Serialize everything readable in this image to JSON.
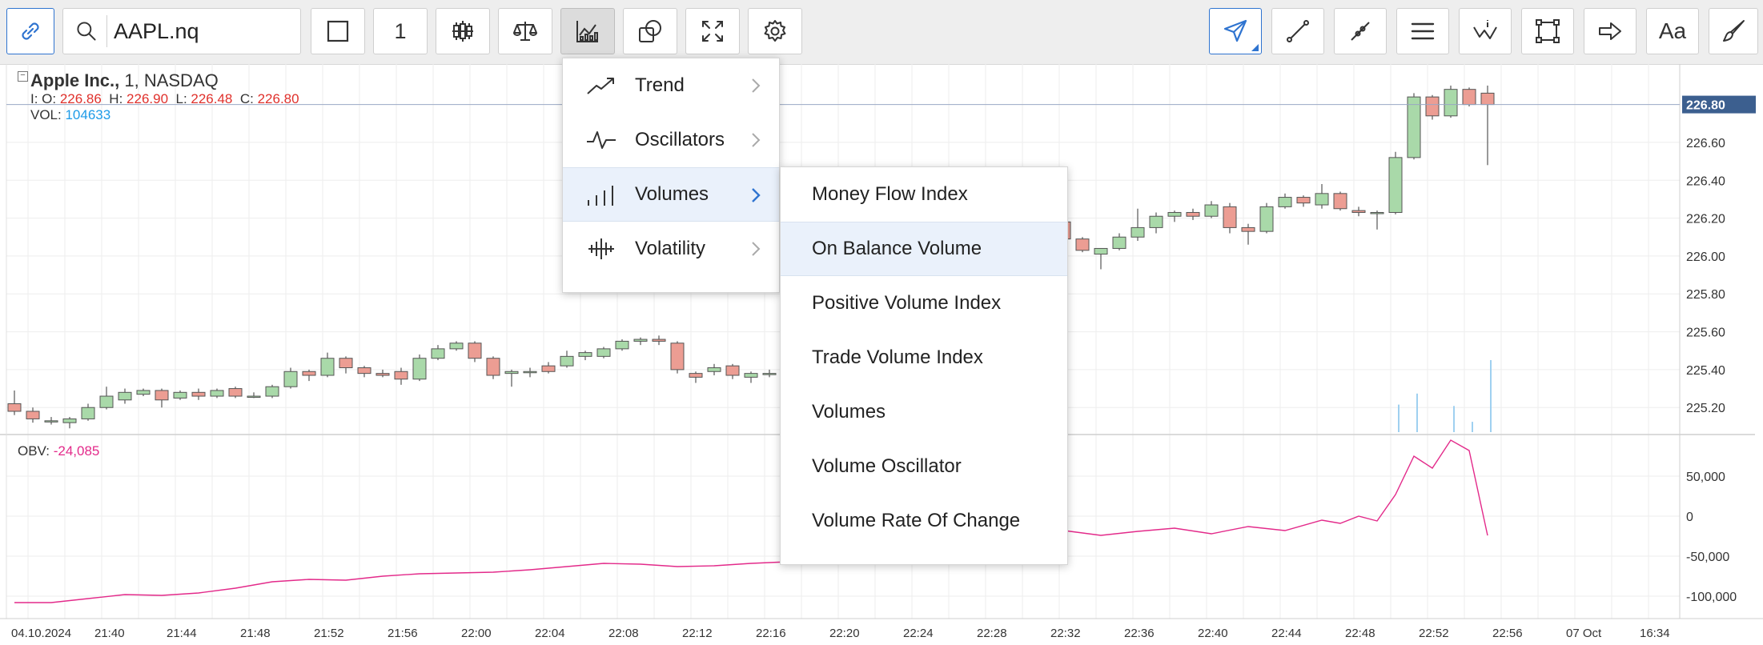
{
  "toolbar": {
    "symbol": "AAPL.nq",
    "interval": "1",
    "buttons": [
      {
        "name": "link-icon",
        "active": true
      },
      {
        "name": "chart-type-bar-icon"
      },
      {
        "name": "candles-icon"
      },
      {
        "name": "compare-scales-icon"
      },
      {
        "name": "indicators-icon",
        "active": true
      },
      {
        "name": "shapes-icon"
      },
      {
        "name": "fullscreen-icon"
      },
      {
        "name": "settings-icon"
      }
    ],
    "drawing_tools": [
      "cursor-arrow-icon",
      "line-tool-icon",
      "polyline-tool-icon",
      "fibonacci-lines-icon",
      "pattern-tool-icon",
      "rectangle-tool-icon",
      "arrow-tool-icon",
      "text-tool-icon",
      "brush-tool-icon"
    ],
    "text_tool_label": "Aa"
  },
  "chart": {
    "title_name": "Apple Inc.,",
    "title_rest": " 1,  NASDAQ",
    "ohlc": {
      "prefix": "I: ",
      "o_label": "O: ",
      "o": "226.86",
      "h_label": "H: ",
      "h": "226.90",
      "l_label": "L: ",
      "l": "226.48",
      "c_label": "C: ",
      "c": "226.80"
    },
    "vol_label": "VOL: ",
    "vol_value": "104633",
    "obv_label": "OBV: ",
    "obv_value": "-24,085",
    "last_price": "226.80",
    "price_axis": [
      "226.60",
      "226.40",
      "226.20",
      "226.00",
      "225.80",
      "225.60",
      "225.40",
      "225.20"
    ],
    "obv_axis": [
      "50,000",
      "0",
      "-50,000",
      "-100,000"
    ],
    "time_axis": [
      "04.10.2024",
      "21:40",
      "21:44",
      "21:48",
      "21:52",
      "21:56",
      "22:00",
      "22:04",
      "22:08",
      "22:12",
      "22:16",
      "22:20",
      "22:24",
      "22:28",
      "22:32",
      "22:36",
      "22:40",
      "22:44",
      "22:48",
      "22:52",
      "22:56",
      "07 Oct",
      "16:34"
    ],
    "colors": {
      "up": "#a9d9a9",
      "down": "#ec9d93",
      "outline": "#555555",
      "obv": "#e32a8a",
      "volume": "#9fd0f0"
    }
  },
  "chart_data": {
    "type": "candlestick",
    "title": "Apple Inc., 1, NASDAQ",
    "candles": [
      {
        "t": "21:36",
        "o": 225.22,
        "h": 225.29,
        "l": 225.16,
        "c": 225.18
      },
      {
        "t": "21:37",
        "o": 225.18,
        "h": 225.2,
        "l": 225.12,
        "c": 225.14
      },
      {
        "t": "21:38",
        "o": 225.13,
        "h": 225.15,
        "l": 225.11,
        "c": 225.13
      },
      {
        "t": "21:39",
        "o": 225.12,
        "h": 225.15,
        "l": 225.09,
        "c": 225.14
      },
      {
        "t": "21:40",
        "o": 225.14,
        "h": 225.22,
        "l": 225.13,
        "c": 225.2
      },
      {
        "t": "21:41",
        "o": 225.2,
        "h": 225.31,
        "l": 225.19,
        "c": 225.26
      },
      {
        "t": "21:42",
        "o": 225.24,
        "h": 225.3,
        "l": 225.22,
        "c": 225.28
      },
      {
        "t": "21:43",
        "o": 225.27,
        "h": 225.3,
        "l": 225.26,
        "c": 225.29
      },
      {
        "t": "21:44",
        "o": 225.29,
        "h": 225.3,
        "l": 225.2,
        "c": 225.24
      },
      {
        "t": "21:45",
        "o": 225.25,
        "h": 225.29,
        "l": 225.24,
        "c": 225.28
      },
      {
        "t": "21:46",
        "o": 225.28,
        "h": 225.3,
        "l": 225.24,
        "c": 225.26
      },
      {
        "t": "21:47",
        "o": 225.26,
        "h": 225.3,
        "l": 225.25,
        "c": 225.29
      },
      {
        "t": "21:48",
        "o": 225.3,
        "h": 225.31,
        "l": 225.25,
        "c": 225.26
      },
      {
        "t": "21:49",
        "o": 225.26,
        "h": 225.28,
        "l": 225.25,
        "c": 225.26
      },
      {
        "t": "21:50",
        "o": 225.26,
        "h": 225.32,
        "l": 225.25,
        "c": 225.31
      },
      {
        "t": "21:51",
        "o": 225.31,
        "h": 225.41,
        "l": 225.3,
        "c": 225.39
      },
      {
        "t": "21:52",
        "o": 225.39,
        "h": 225.4,
        "l": 225.34,
        "c": 225.37
      },
      {
        "t": "21:53",
        "o": 225.37,
        "h": 225.49,
        "l": 225.36,
        "c": 225.46
      },
      {
        "t": "21:54",
        "o": 225.46,
        "h": 225.47,
        "l": 225.38,
        "c": 225.41
      },
      {
        "t": "21:55",
        "o": 225.41,
        "h": 225.42,
        "l": 225.36,
        "c": 225.38
      },
      {
        "t": "21:56",
        "o": 225.38,
        "h": 225.4,
        "l": 225.36,
        "c": 225.37
      },
      {
        "t": "21:57",
        "o": 225.39,
        "h": 225.41,
        "l": 225.32,
        "c": 225.35
      },
      {
        "t": "21:58",
        "o": 225.35,
        "h": 225.48,
        "l": 225.34,
        "c": 225.46
      },
      {
        "t": "21:59",
        "o": 225.46,
        "h": 225.53,
        "l": 225.45,
        "c": 225.51
      },
      {
        "t": "22:00",
        "o": 225.51,
        "h": 225.55,
        "l": 225.5,
        "c": 225.54
      },
      {
        "t": "22:01",
        "o": 225.54,
        "h": 225.55,
        "l": 225.44,
        "c": 225.46
      },
      {
        "t": "22:02",
        "o": 225.46,
        "h": 225.47,
        "l": 225.35,
        "c": 225.37
      },
      {
        "t": "22:03",
        "o": 225.38,
        "h": 225.4,
        "l": 225.31,
        "c": 225.39
      },
      {
        "t": "22:04",
        "o": 225.39,
        "h": 225.41,
        "l": 225.36,
        "c": 225.39
      },
      {
        "t": "22:05",
        "o": 225.42,
        "h": 225.44,
        "l": 225.38,
        "c": 225.39
      },
      {
        "t": "22:06",
        "o": 225.42,
        "h": 225.5,
        "l": 225.41,
        "c": 225.47
      },
      {
        "t": "22:07",
        "o": 225.47,
        "h": 225.5,
        "l": 225.45,
        "c": 225.49
      },
      {
        "t": "22:08",
        "o": 225.47,
        "h": 225.52,
        "l": 225.46,
        "c": 225.51
      },
      {
        "t": "22:09",
        "o": 225.51,
        "h": 225.56,
        "l": 225.5,
        "c": 225.55
      },
      {
        "t": "22:10",
        "o": 225.55,
        "h": 225.57,
        "l": 225.53,
        "c": 225.56
      },
      {
        "t": "22:11",
        "o": 225.56,
        "h": 225.58,
        "l": 225.53,
        "c": 225.55
      },
      {
        "t": "22:12",
        "o": 225.54,
        "h": 225.55,
        "l": 225.38,
        "c": 225.4
      },
      {
        "t": "22:13",
        "o": 225.38,
        "h": 225.39,
        "l": 225.33,
        "c": 225.36
      },
      {
        "t": "22:14",
        "o": 225.39,
        "h": 225.43,
        "l": 225.37,
        "c": 225.41
      },
      {
        "t": "22:15",
        "o": 225.42,
        "h": 225.43,
        "l": 225.35,
        "c": 225.37
      },
      {
        "t": "22:16",
        "o": 225.36,
        "h": 225.39,
        "l": 225.33,
        "c": 225.38
      },
      {
        "t": "22:17",
        "o": 225.38,
        "h": 225.4,
        "l": 225.36,
        "c": 225.38
      },
      {
        "t": "22:29",
        "o": 226.12,
        "h": 226.19,
        "l": 226.08,
        "c": 226.17
      },
      {
        "t": "22:30",
        "o": 226.18,
        "h": 226.25,
        "l": 226.16,
        "c": 226.23
      },
      {
        "t": "22:31",
        "o": 226.23,
        "h": 226.31,
        "l": 226.2,
        "c": 226.27
      },
      {
        "t": "22:32",
        "o": 226.27,
        "h": 226.3,
        "l": 226.17,
        "c": 226.18
      },
      {
        "t": "22:33",
        "o": 226.18,
        "h": 226.2,
        "l": 226.08,
        "c": 226.09
      },
      {
        "t": "22:34",
        "o": 226.09,
        "h": 226.1,
        "l": 226.02,
        "c": 226.03
      },
      {
        "t": "22:35",
        "o": 226.01,
        "h": 226.03,
        "l": 225.93,
        "c": 226.04
      },
      {
        "t": "22:36",
        "o": 226.04,
        "h": 226.12,
        "l": 226.03,
        "c": 226.1
      },
      {
        "t": "22:37",
        "o": 226.1,
        "h": 226.25,
        "l": 226.08,
        "c": 226.15
      },
      {
        "t": "22:38",
        "o": 226.15,
        "h": 226.23,
        "l": 226.12,
        "c": 226.21
      },
      {
        "t": "22:39",
        "o": 226.21,
        "h": 226.24,
        "l": 226.18,
        "c": 226.23
      },
      {
        "t": "22:40",
        "o": 226.23,
        "h": 226.25,
        "l": 226.19,
        "c": 226.21
      },
      {
        "t": "22:41",
        "o": 226.21,
        "h": 226.29,
        "l": 226.2,
        "c": 226.27
      },
      {
        "t": "22:42",
        "o": 226.26,
        "h": 226.28,
        "l": 226.12,
        "c": 226.15
      },
      {
        "t": "22:43",
        "o": 226.15,
        "h": 226.17,
        "l": 226.06,
        "c": 226.13
      },
      {
        "t": "22:44",
        "o": 226.13,
        "h": 226.28,
        "l": 226.12,
        "c": 226.26
      },
      {
        "t": "22:45",
        "o": 226.26,
        "h": 226.33,
        "l": 226.25,
        "c": 226.31
      },
      {
        "t": "22:46",
        "o": 226.31,
        "h": 226.32,
        "l": 226.26,
        "c": 226.28
      },
      {
        "t": "22:47",
        "o": 226.27,
        "h": 226.38,
        "l": 226.25,
        "c": 226.33
      },
      {
        "t": "22:48",
        "o": 226.33,
        "h": 226.34,
        "l": 226.24,
        "c": 226.25
      },
      {
        "t": "22:49",
        "o": 226.24,
        "h": 226.26,
        "l": 226.21,
        "c": 226.23
      },
      {
        "t": "22:50",
        "o": 226.23,
        "h": 226.24,
        "l": 226.14,
        "c": 226.23
      },
      {
        "t": "22:51",
        "o": 226.23,
        "h": 226.55,
        "l": 226.22,
        "c": 226.52
      },
      {
        "t": "22:52",
        "o": 226.52,
        "h": 226.86,
        "l": 226.51,
        "c": 226.84
      },
      {
        "t": "22:53",
        "o": 226.84,
        "h": 226.85,
        "l": 226.72,
        "c": 226.74
      },
      {
        "t": "22:54",
        "o": 226.74,
        "h": 226.9,
        "l": 226.73,
        "c": 226.88
      },
      {
        "t": "22:55",
        "o": 226.88,
        "h": 226.89,
        "l": 226.79,
        "c": 226.8
      },
      {
        "t": "22:56",
        "o": 226.86,
        "h": 226.9,
        "l": 226.48,
        "c": 226.8
      }
    ],
    "volume_bars": [
      {
        "t": "22:51",
        "v": 40000
      },
      {
        "t": "22:52",
        "v": 56000
      },
      {
        "t": "22:54",
        "v": 38000
      },
      {
        "t": "22:55",
        "v": 15000
      },
      {
        "t": "22:56",
        "v": 104633
      }
    ],
    "obv": [
      {
        "t": "21:36",
        "v": -108000
      },
      {
        "t": "21:38",
        "v": -108000
      },
      {
        "t": "21:40",
        "v": -103000
      },
      {
        "t": "21:42",
        "v": -98000
      },
      {
        "t": "21:44",
        "v": -99000
      },
      {
        "t": "21:46",
        "v": -96000
      },
      {
        "t": "21:48",
        "v": -90000
      },
      {
        "t": "21:50",
        "v": -82000
      },
      {
        "t": "21:52",
        "v": -79000
      },
      {
        "t": "21:54",
        "v": -80000
      },
      {
        "t": "21:56",
        "v": -75000
      },
      {
        "t": "21:58",
        "v": -72000
      },
      {
        "t": "22:00",
        "v": -71000
      },
      {
        "t": "22:02",
        "v": -70000
      },
      {
        "t": "22:04",
        "v": -67000
      },
      {
        "t": "22:06",
        "v": -63000
      },
      {
        "t": "22:08",
        "v": -59000
      },
      {
        "t": "22:10",
        "v": -60000
      },
      {
        "t": "22:12",
        "v": -63000
      },
      {
        "t": "22:14",
        "v": -62000
      },
      {
        "t": "22:16",
        "v": -59000
      },
      {
        "t": "22:18",
        "v": -57000
      },
      {
        "t": "22:29",
        "v": -20000
      },
      {
        "t": "22:31",
        "v": -11000
      },
      {
        "t": "22:33",
        "v": -18000
      },
      {
        "t": "22:35",
        "v": -24000
      },
      {
        "t": "22:37",
        "v": -19000
      },
      {
        "t": "22:39",
        "v": -15000
      },
      {
        "t": "22:41",
        "v": -22000
      },
      {
        "t": "22:43",
        "v": -13000
      },
      {
        "t": "22:45",
        "v": -18000
      },
      {
        "t": "22:47",
        "v": -5000
      },
      {
        "t": "22:48",
        "v": -9000
      },
      {
        "t": "22:49",
        "v": 0
      },
      {
        "t": "22:50",
        "v": -6000
      },
      {
        "t": "22:51",
        "v": 27000
      },
      {
        "t": "22:52",
        "v": 75000
      },
      {
        "t": "22:53",
        "v": 60000
      },
      {
        "t": "22:54",
        "v": 95000
      },
      {
        "t": "22:55",
        "v": 82000
      },
      {
        "t": "22:56",
        "v": -24085
      }
    ],
    "ylim_price": [
      225.07,
      226.98
    ],
    "ylim_obv": [
      -120000,
      100000
    ],
    "grid": true
  },
  "menus": {
    "main": [
      {
        "label": "Trend",
        "icon": "trend-icon",
        "active": false
      },
      {
        "label": "Oscillators",
        "icon": "oscillators-icon",
        "active": false
      },
      {
        "label": "Volumes",
        "icon": "volumes-icon",
        "active": true
      },
      {
        "label": "Volatility",
        "icon": "volatility-icon",
        "active": false
      }
    ],
    "sub": [
      {
        "label": "Money Flow Index",
        "hover": false
      },
      {
        "label": "On Balance Volume",
        "hover": true
      },
      {
        "label": "Positive Volume Index",
        "hover": false
      },
      {
        "label": "Trade Volume Index",
        "hover": false
      },
      {
        "label": "Volumes",
        "hover": false
      },
      {
        "label": "Volume Oscillator",
        "hover": false
      },
      {
        "label": "Volume Rate Of Change",
        "hover": false
      }
    ]
  }
}
